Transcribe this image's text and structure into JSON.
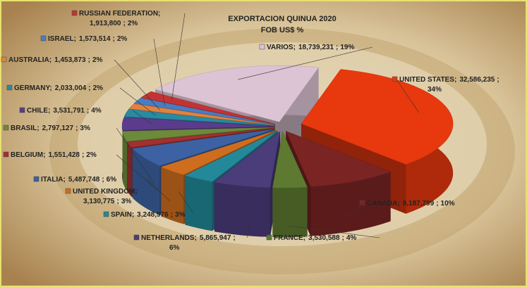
{
  "chart_data": {
    "type": "pie3d",
    "title": "EXPORTACION  QUINUA 2020",
    "subtitle": "FOB US$ %",
    "separator": ";",
    "categories": [
      "UNITED STATES",
      "CANADA",
      "FRANCE",
      "NETHERLANDS",
      "SPAIN",
      "UNITED KINGDOM",
      "ITALIA",
      "BELGIUM",
      "BRASIL",
      "CHILE",
      "GERMANY",
      "AUSTRALIA",
      "ISRAEL",
      "RUSSIAN FEDERATION",
      "VARIOS"
    ],
    "values": [
      32586235,
      9187799,
      3530588,
      5865947,
      3248976,
      3130775,
      5487748,
      1551428,
      2797127,
      3531791,
      2033004,
      1453873,
      1573514,
      1913800,
      18739231
    ],
    "value_labels": [
      "32,586,235",
      "9,187,799",
      "3,530,588",
      "5,865,947",
      "3,248,976",
      "3,130,775",
      "5,487,748",
      "1,551,428",
      "2,797,127",
      "3,531,791",
      "2,033,004",
      "1,453,873",
      "1,573,514",
      "1,913,800",
      "18,739,231"
    ],
    "percents": [
      34,
      10,
      4,
      6,
      3,
      3,
      6,
      2,
      3,
      4,
      2,
      2,
      2,
      2,
      19
    ],
    "percent_labels": [
      "34%",
      "10%",
      "4%",
      "6%",
      "3%",
      "3%",
      "6%",
      "2%",
      "3%",
      "4%",
      "2%",
      "2%",
      "2%",
      "2%",
      "19%"
    ],
    "colors": [
      "#e8380e",
      "#7a2424",
      "#5d7a30",
      "#4b3c7a",
      "#23899a",
      "#cf6d1f",
      "#3c62a3",
      "#a23030",
      "#6c8a3a",
      "#5b3c8c",
      "#2a8aa2",
      "#e0823f",
      "#4a7cc2",
      "#c23434",
      "#dcc4d4"
    ]
  }
}
